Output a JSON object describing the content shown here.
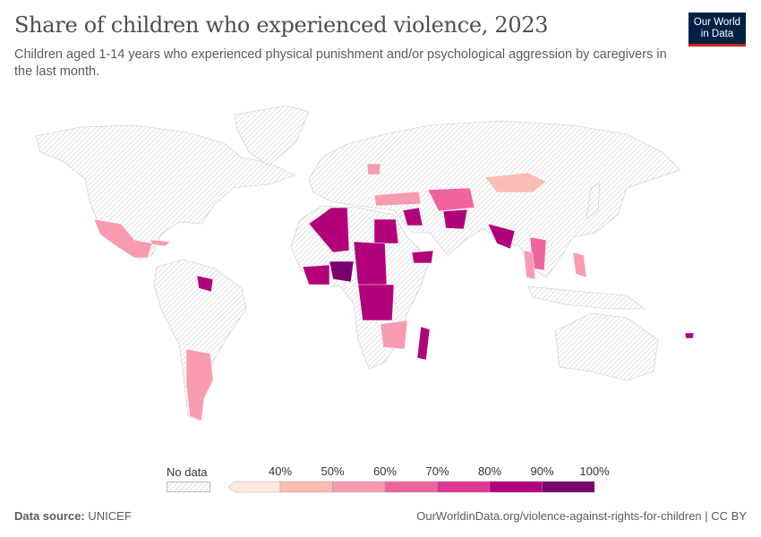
{
  "header": {
    "title": "Share of children who experienced violence, 2023",
    "subtitle": "Children aged 1-14 years who experienced physical punishment and/or psychological aggression by caregivers in the last month.",
    "logo_text": "Our World in Data"
  },
  "legend": {
    "no_data_label": "No data",
    "ticks": [
      "40%",
      "50%",
      "60%",
      "70%",
      "80%",
      "90%",
      "100%"
    ],
    "bins": [
      {
        "range": "<40%",
        "color": "#fde9e0"
      },
      {
        "range": "40-50%",
        "color": "#fbbcb4"
      },
      {
        "range": "50-60%",
        "color": "#f99bb0"
      },
      {
        "range": "60-70%",
        "color": "#f0649d"
      },
      {
        "range": "70-80%",
        "color": "#dd3694"
      },
      {
        "range": "80-90%",
        "color": "#b2007a"
      },
      {
        "range": "90-100%",
        "color": "#7a006f"
      }
    ]
  },
  "footer": {
    "source_label": "Data source:",
    "source": "UNICEF",
    "url": "OurWorldinData.org/violence-against-rights-for-children | CC BY"
  },
  "colors": {
    "no_data": "#e6e6e6",
    "border": "#bdbdbd",
    "brand": "#002147",
    "brand_accent": "#ce261e"
  }
}
